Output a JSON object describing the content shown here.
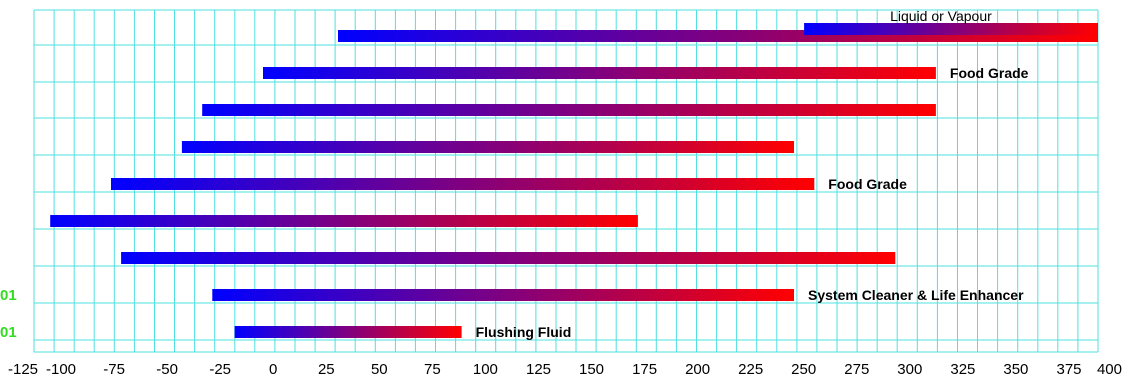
{
  "chart_data": {
    "type": "bar",
    "orientation": "horizontal-range",
    "title": "",
    "xlabel": "",
    "ylabel": "",
    "xlim": [
      -125,
      400
    ],
    "xticks": [
      -125,
      -100,
      -75,
      -50,
      -25,
      0,
      25,
      50,
      75,
      100,
      125,
      150,
      175,
      200,
      225,
      250,
      275,
      300,
      325,
      350,
      375,
      400
    ],
    "grid": true,
    "colors": {
      "low": "#0000ff",
      "high": "#ff0000",
      "grid": "#4fe0e0",
      "code": "#33dd22"
    },
    "bars": [
      {
        "start": 25,
        "end": 400,
        "label": ""
      },
      {
        "start": -12,
        "end": 320,
        "label": "Food Grade"
      },
      {
        "start": -42,
        "end": 320,
        "label": ""
      },
      {
        "start": -52,
        "end": 250,
        "label": ""
      },
      {
        "start": -87,
        "end": 260,
        "label": "Food Grade"
      },
      {
        "start": -117,
        "end": 173,
        "label": ""
      },
      {
        "start": -82,
        "end": 300,
        "label": ""
      },
      {
        "start": -37,
        "end": 250,
        "label": "System Cleaner & Life Enhancer"
      },
      {
        "start": -26,
        "end": 86,
        "label": "Flushing Fluid"
      }
    ],
    "phase_bar": {
      "start": 255,
      "end": 400,
      "label": "Liquid or Vapour"
    },
    "row_codes": [
      {
        "row": 7,
        "text": "01"
      },
      {
        "row": 8,
        "text": "01"
      }
    ]
  }
}
